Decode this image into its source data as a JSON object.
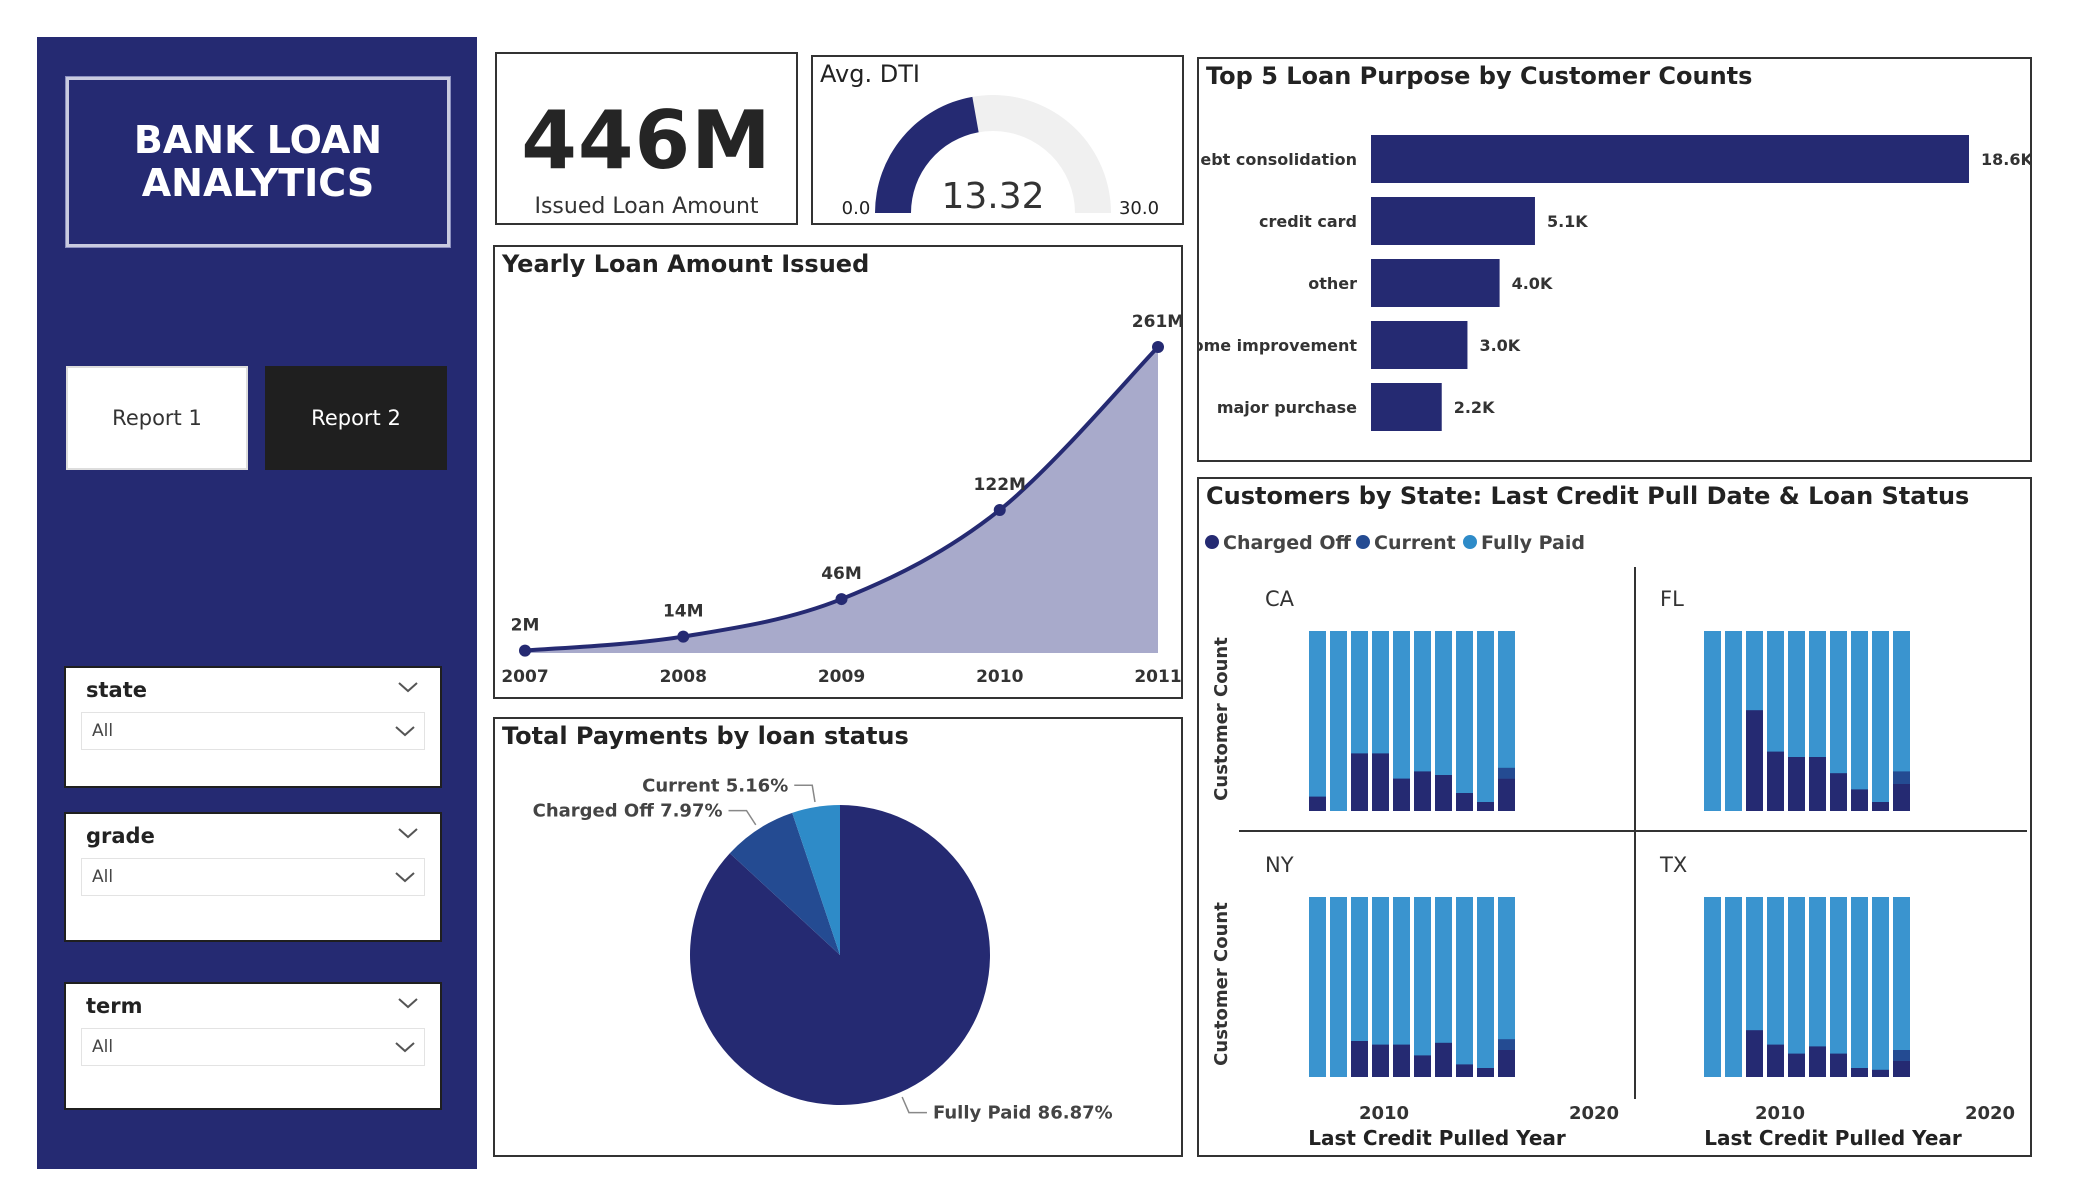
{
  "sidebar": {
    "title": "BANK LOAN ANALYTICS",
    "report1_label": "Report 1",
    "report2_label": "Report 2",
    "slicers": [
      {
        "label": "state",
        "value": "All"
      },
      {
        "label": "grade",
        "value": "All"
      },
      {
        "label": "term",
        "value": "All"
      }
    ]
  },
  "kpi": {
    "value": "446M",
    "label": "Issued Loan Amount"
  },
  "gauge": {
    "title": "Avg. DTI",
    "value": 13.32,
    "value_label": "13.32",
    "min": 0,
    "max": 30,
    "min_label": "0.0",
    "max_label": "30.0"
  },
  "colors": {
    "navy": "#252a72",
    "area": "#a8aacb",
    "status_charged": "#252a72",
    "status_current": "#244b92",
    "status_paid": "#2e8bc8",
    "bar_navy": "#252a72",
    "state_light": "#3a94cf"
  },
  "chart_data": [
    {
      "type": "area",
      "title": "Yearly Loan Amount Issued",
      "x": [
        2007,
        2008,
        2009,
        2010,
        2011
      ],
      "values": [
        2,
        14,
        46,
        122,
        261
      ],
      "labels": [
        "2M",
        "14M",
        "46M",
        "122M",
        "261M"
      ],
      "x_labels": [
        "2007",
        "2008",
        "2009",
        "2010",
        "2011"
      ],
      "ylim": [
        0,
        261
      ]
    },
    {
      "type": "pie",
      "title": "Total Payments by loan status",
      "slices": [
        {
          "name": "Fully Paid",
          "value": 86.87,
          "label": "Fully Paid 86.87%"
        },
        {
          "name": "Charged Off",
          "value": 7.97,
          "label": "Charged Off 7.97%"
        },
        {
          "name": "Current",
          "value": 5.16,
          "label": "Current 5.16%"
        }
      ]
    },
    {
      "type": "bar",
      "orientation": "horizontal",
      "title": "Top 5 Loan Purpose by Customer Counts",
      "categories": [
        "debt consolidation",
        "credit card",
        "other",
        "home improvement",
        "major purchase"
      ],
      "values": [
        18.6,
        5.1,
        4.0,
        3.0,
        2.2
      ],
      "labels": [
        "18.6K",
        "5.1K",
        "4.0K",
        "3.0K",
        "2.2K"
      ],
      "units": "K customers"
    },
    {
      "type": "bar",
      "stacked": true,
      "title": "Customers by State: Last Credit Pull Date & Loan Status",
      "legend": [
        "Charged Off",
        "Current",
        "Fully Paid"
      ],
      "xlabel": "Last Credit Pulled Year",
      "ylabel": "Customer Count",
      "x_ticks": [
        "2010",
        "2020"
      ],
      "panels": [
        {
          "state": "CA",
          "charged_off": [
            0.08,
            0,
            0.32,
            0.32,
            0.18,
            0.22,
            0.2,
            0.1,
            0.05,
            0.18
          ],
          "current": [
            0,
            0,
            0,
            0,
            0,
            0,
            0,
            0,
            0,
            0.06
          ]
        },
        {
          "state": "FL",
          "charged_off": [
            0,
            0,
            0.56,
            0.33,
            0.3,
            0.3,
            0.21,
            0.12,
            0.05,
            0.15
          ],
          "current": [
            0,
            0,
            0,
            0,
            0,
            0,
            0,
            0,
            0,
            0.07
          ]
        },
        {
          "state": "NY",
          "charged_off": [
            0,
            0,
            0.2,
            0.18,
            0.18,
            0.12,
            0.19,
            0.07,
            0.05,
            0.15
          ],
          "current": [
            0,
            0,
            0,
            0,
            0,
            0,
            0,
            0,
            0,
            0.06
          ]
        },
        {
          "state": "TX",
          "charged_off": [
            0,
            0,
            0.26,
            0.18,
            0.13,
            0.17,
            0.13,
            0.05,
            0.04,
            0.09
          ],
          "current": [
            0,
            0,
            0,
            0,
            0,
            0,
            0,
            0,
            0,
            0.06
          ]
        }
      ]
    }
  ]
}
